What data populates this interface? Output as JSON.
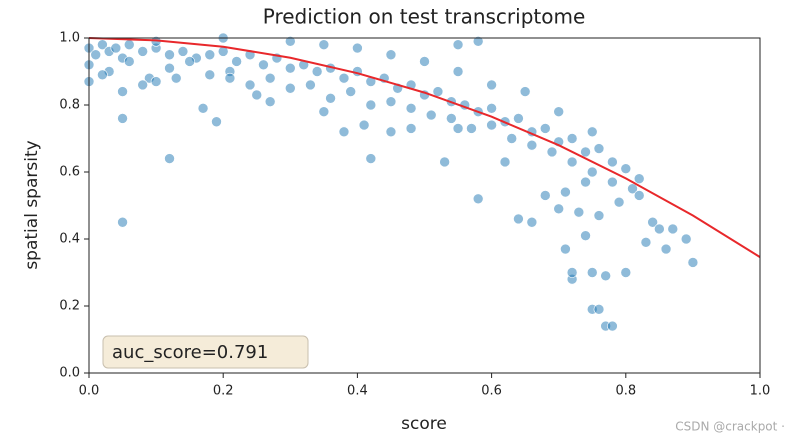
{
  "chart_data": {
    "type": "scatter",
    "title": "Prediction on test transcriptome",
    "xlabel": "score",
    "ylabel": "spatial sparsity",
    "xlim": [
      0,
      1
    ],
    "ylim": [
      0,
      1
    ],
    "xticks": [
      {
        "value": 0,
        "label": "0.0"
      },
      0.2,
      0.4,
      0.6,
      0.8,
      {
        "value": 1,
        "label": "1.0"
      }
    ],
    "yticks": [
      {
        "value": 0,
        "label": "0.0"
      },
      0.2,
      0.4,
      0.6,
      0.8,
      {
        "value": 1,
        "label": "1.0"
      }
    ],
    "points": {
      "color": "#1f77b4",
      "x": [
        0.0,
        0.01,
        0.02,
        0.03,
        0.04,
        0.05,
        0.06,
        0.08,
        0.1,
        0.12,
        0.14,
        0.16,
        0.18,
        0.2,
        0.22,
        0.24,
        0.26,
        0.28,
        0.3,
        0.32,
        0.34,
        0.36,
        0.38,
        0.4,
        0.42,
        0.44,
        0.46,
        0.48,
        0.5,
        0.52,
        0.54,
        0.56,
        0.58,
        0.6,
        0.62,
        0.64,
        0.66,
        0.68,
        0.7,
        0.72,
        0.74,
        0.76,
        0.78,
        0.8,
        0.82,
        0.0,
        0.03,
        0.06,
        0.09,
        0.12,
        0.15,
        0.18,
        0.21,
        0.24,
        0.27,
        0.3,
        0.33,
        0.36,
        0.39,
        0.42,
        0.45,
        0.48,
        0.51,
        0.54,
        0.57,
        0.6,
        0.63,
        0.66,
        0.69,
        0.72,
        0.75,
        0.78,
        0.81,
        0.1,
        0.2,
        0.3,
        0.35,
        0.4,
        0.45,
        0.5,
        0.55,
        0.6,
        0.65,
        0.7,
        0.75,
        0.0,
        0.02,
        0.05,
        0.08,
        0.1,
        0.13,
        0.17,
        0.19,
        0.21,
        0.25,
        0.27,
        0.35,
        0.38,
        0.41,
        0.45,
        0.48,
        0.55,
        0.58,
        0.62,
        0.64,
        0.66,
        0.68,
        0.7,
        0.71,
        0.73,
        0.74,
        0.76,
        0.79,
        0.82,
        0.84,
        0.05,
        0.12,
        0.05,
        0.42,
        0.53,
        0.75,
        0.76,
        0.77,
        0.78,
        0.72,
        0.72,
        0.77,
        0.8,
        0.75,
        0.9,
        0.89,
        0.86,
        0.83,
        0.85,
        0.87,
        0.71,
        0.74,
        0.55,
        0.58
      ],
      "y": [
        0.97,
        0.95,
        0.98,
        0.96,
        0.97,
        0.94,
        0.98,
        0.96,
        0.97,
        0.95,
        0.96,
        0.94,
        0.95,
        0.96,
        0.93,
        0.95,
        0.92,
        0.94,
        0.91,
        0.92,
        0.9,
        0.91,
        0.88,
        0.9,
        0.87,
        0.88,
        0.85,
        0.86,
        0.83,
        0.84,
        0.81,
        0.8,
        0.78,
        0.79,
        0.75,
        0.76,
        0.72,
        0.73,
        0.69,
        0.7,
        0.66,
        0.67,
        0.63,
        0.61,
        0.58,
        0.92,
        0.9,
        0.93,
        0.88,
        0.91,
        0.93,
        0.89,
        0.9,
        0.86,
        0.88,
        0.85,
        0.86,
        0.82,
        0.84,
        0.8,
        0.81,
        0.79,
        0.77,
        0.76,
        0.73,
        0.74,
        0.7,
        0.68,
        0.66,
        0.63,
        0.6,
        0.57,
        0.55,
        0.99,
        1.0,
        0.99,
        0.98,
        0.97,
        0.95,
        0.93,
        0.9,
        0.86,
        0.84,
        0.78,
        0.72,
        0.87,
        0.89,
        0.84,
        0.86,
        0.87,
        0.88,
        0.79,
        0.75,
        0.88,
        0.83,
        0.81,
        0.78,
        0.72,
        0.74,
        0.72,
        0.73,
        0.73,
        0.52,
        0.63,
        0.46,
        0.45,
        0.53,
        0.49,
        0.54,
        0.48,
        0.57,
        0.47,
        0.51,
        0.53,
        0.45,
        0.45,
        0.64,
        0.76,
        0.64,
        0.63,
        0.19,
        0.19,
        0.14,
        0.14,
        0.28,
        0.3,
        0.29,
        0.3,
        0.3,
        0.33,
        0.4,
        0.37,
        0.39,
        0.43,
        0.43,
        0.37,
        0.41,
        0.98,
        0.99
      ]
    },
    "line": {
      "color": "#e8282b",
      "x": [
        0,
        0.1,
        0.2,
        0.3,
        0.4,
        0.5,
        0.6,
        0.7,
        0.8,
        0.9,
        1.0
      ],
      "y": [
        1.0,
        0.993,
        0.974,
        0.941,
        0.895,
        0.837,
        0.765,
        0.68,
        0.581,
        0.47,
        0.346
      ]
    },
    "annotation": "auc_score=0.791"
  },
  "watermark": "CSDN @crackpot ·"
}
